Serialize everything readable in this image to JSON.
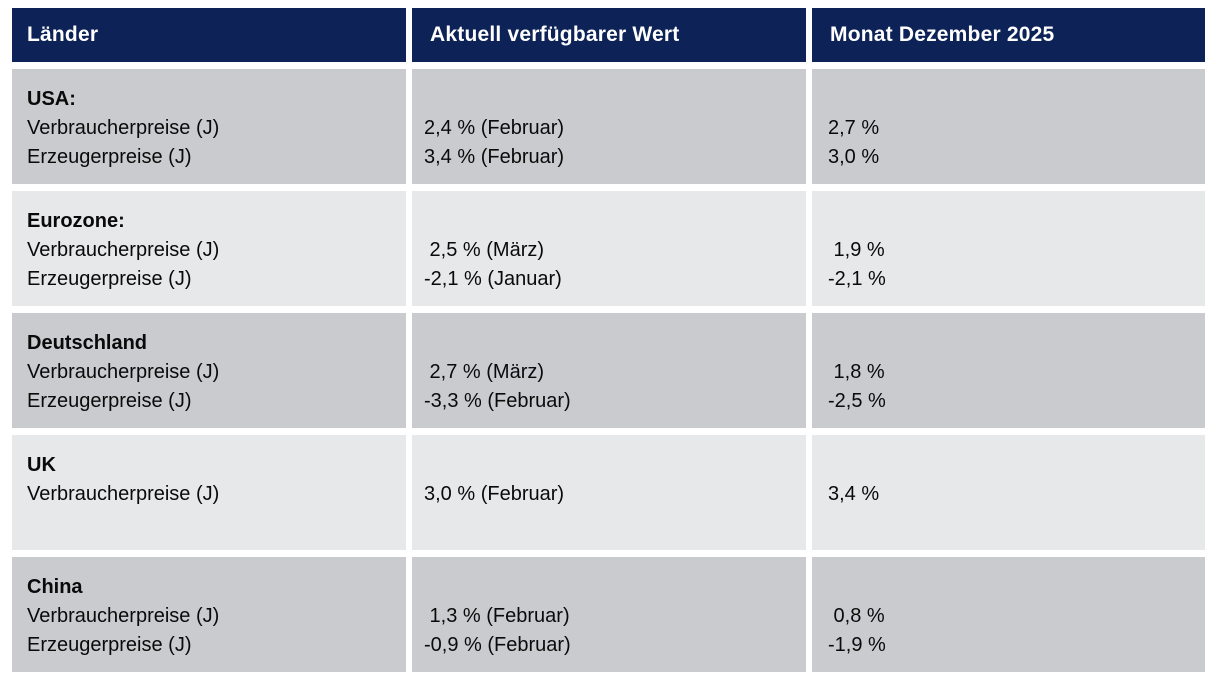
{
  "colors": {
    "header_bg": "#0D2257",
    "header_text": "#FFFFFF",
    "row_dark": "#CACBCE",
    "row_light": "#E7E8EA",
    "body_text": "#0A0A0A",
    "gutter": "#FFFFFF"
  },
  "table": {
    "columns": [
      {
        "label": "Länder"
      },
      {
        "label": "Aktuell verfügbarer Wert"
      },
      {
        "label": "Monat Dezember 2025"
      }
    ],
    "rows": [
      {
        "country": "USA:",
        "items": [
          {
            "label": "Verbraucherpreise (J)",
            "current": "2,4 % (Februar)",
            "december": "2,7 %"
          },
          {
            "label": "Erzeugerpreise (J)",
            "current": "3,4 % (Februar)",
            "december": "3,0 %"
          }
        ]
      },
      {
        "country": "Eurozone:",
        "items": [
          {
            "label": "Verbraucherpreise (J)",
            "current": " 2,5 % (März)",
            "december": " 1,9 %"
          },
          {
            "label": "Erzeugerpreise (J)",
            "current": "-2,1 % (Januar)",
            "december": "-2,1 %"
          }
        ]
      },
      {
        "country": "Deutschland",
        "items": [
          {
            "label": "Verbraucherpreise (J)",
            "current": " 2,7 % (März)",
            "december": " 1,8 %"
          },
          {
            "label": "Erzeugerpreise (J)",
            "current": "-3,3 % (Februar)",
            "december": "-2,5 %"
          }
        ]
      },
      {
        "country": "UK",
        "items": [
          {
            "label": "Verbraucherpreise (J)",
            "current": "3,0 % (Februar)",
            "december": "3,4 %"
          }
        ]
      },
      {
        "country": "China",
        "items": [
          {
            "label": "Verbraucherpreise (J)",
            "current": " 1,3 % (Februar)",
            "december": " 0,8 %"
          },
          {
            "label": "Erzeugerpreise (J)",
            "current": "-0,9 % (Februar)",
            "december": "-1,9 %"
          }
        ]
      }
    ]
  }
}
